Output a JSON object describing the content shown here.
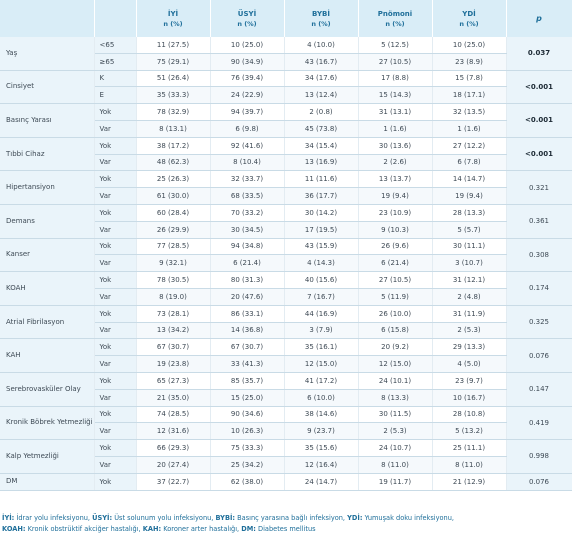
{
  "header": {
    "col0": "",
    "col1": "",
    "groups": [
      {
        "name": "İYİ",
        "sub": "n (%)"
      },
      {
        "name": "ÜSYİ",
        "sub": "n (%)"
      },
      {
        "name": "BYBİ",
        "sub": "n (%)"
      },
      {
        "name": "Pnömoni",
        "sub": "n (%)"
      },
      {
        "name": "YDİ",
        "sub": "n (%)"
      }
    ],
    "p": "p"
  },
  "rows": [
    {
      "variable": "Yaş",
      "p": "0.037",
      "sig": true,
      "levels": [
        {
          "level": "<65",
          "v": [
            "11 (27.5)",
            "10 (25.0)",
            "4 (10.0)",
            "5 (12.5)",
            "10 (25.0)"
          ]
        },
        {
          "level": "≥65",
          "v": [
            "75 (29.1)",
            "90 (34.9)",
            "43 (16.7)",
            "27 (10.5)",
            "23 (8.9)"
          ]
        }
      ]
    },
    {
      "variable": "Cinsiyet",
      "p": "<0.001",
      "sig": true,
      "levels": [
        {
          "level": "K",
          "v": [
            "51 (26.4)",
            "76 (39.4)",
            "34 (17.6)",
            "17 (8.8)",
            "15 (7.8)"
          ]
        },
        {
          "level": "E",
          "v": [
            "35 (33.3)",
            "24 (22.9)",
            "13 (12.4)",
            "15 (14.3)",
            "18 (17.1)"
          ]
        }
      ]
    },
    {
      "variable": "Basınç Yarası",
      "p": "<0.001",
      "sig": true,
      "levels": [
        {
          "level": "Yok",
          "v": [
            "78 (32.9)",
            "94 (39.7)",
            "2 (0.8)",
            "31 (13.1)",
            "32 (13.5)"
          ]
        },
        {
          "level": "Var",
          "v": [
            "8 (13.1)",
            "6 (9.8)",
            "45 (73.8)",
            "1 (1.6)",
            "1 (1.6)"
          ]
        }
      ]
    },
    {
      "variable": "Tıbbi Cihaz",
      "p": "<0.001",
      "sig": true,
      "levels": [
        {
          "level": "Yok",
          "v": [
            "38 (17.2)",
            "92 (41.6)",
            "34 (15.4)",
            "30 (13.6)",
            "27 (12.2)"
          ]
        },
        {
          "level": "Var",
          "v": [
            "48 (62.3)",
            "8 (10.4)",
            "13 (16.9)",
            "2 (2.6)",
            "6 (7.8)"
          ]
        }
      ]
    },
    {
      "variable": "Hipertansiyon",
      "p": "0.321",
      "sig": false,
      "levels": [
        {
          "level": "Yok",
          "v": [
            "25 (26.3)",
            "32 (33.7)",
            "11 (11.6)",
            "13 (13.7)",
            "14 (14.7)"
          ]
        },
        {
          "level": "Var",
          "v": [
            "61 (30.0)",
            "68 (33.5)",
            "36 (17.7)",
            "19 (9.4)",
            "19 (9.4)"
          ]
        }
      ]
    },
    {
      "variable": "Demans",
      "p": "0.361",
      "sig": false,
      "levels": [
        {
          "level": "Yok",
          "v": [
            "60 (28.4)",
            "70 (33.2)",
            "30 (14.2)",
            "23 (10.9)",
            "28 (13.3)"
          ]
        },
        {
          "level": "Var",
          "v": [
            "26 (29.9)",
            "30 (34.5)",
            "17 (19.5)",
            "9 (10.3)",
            "5 (5.7)"
          ]
        }
      ]
    },
    {
      "variable": "Kanser",
      "p": "0.308",
      "sig": false,
      "levels": [
        {
          "level": "Yok",
          "v": [
            "77 (28.5)",
            "94 (34.8)",
            "43 (15.9)",
            "26 (9.6)",
            "30 (11.1)"
          ]
        },
        {
          "level": "Var",
          "v": [
            "9 (32.1)",
            "6 (21.4)",
            "4 (14.3)",
            "6 (21.4)",
            "3 (10.7)"
          ]
        }
      ]
    },
    {
      "variable": "KOAH",
      "p": "0.174",
      "sig": false,
      "levels": [
        {
          "level": "Yok",
          "v": [
            "78 (30.5)",
            "80 (31.3)",
            "40 (15.6)",
            "27 (10.5)",
            "31 (12.1)"
          ]
        },
        {
          "level": "Var",
          "v": [
            "8 (19.0)",
            "20 (47.6)",
            "7 (16.7)",
            "5 (11.9)",
            "2 (4.8)"
          ]
        }
      ]
    },
    {
      "variable": "Atrial Fibrilasyon",
      "p": "0.325",
      "sig": false,
      "levels": [
        {
          "level": "Yok",
          "v": [
            "73 (28.1)",
            "86 (33.1)",
            "44 (16.9)",
            "26 (10.0)",
            "31 (11.9)"
          ]
        },
        {
          "level": "Var",
          "v": [
            "13 (34.2)",
            "14 (36.8)",
            "3 (7.9)",
            "6 (15.8)",
            "2 (5.3)"
          ]
        }
      ]
    },
    {
      "variable": "KAH",
      "p": "0.076",
      "sig": false,
      "levels": [
        {
          "level": "Yok",
          "v": [
            "67 (30.7)",
            "67 (30.7)",
            "35 (16.1)",
            "20 (9.2)",
            "29 (13.3)"
          ]
        },
        {
          "level": "Var",
          "v": [
            "19 (23.8)",
            "33 (41.3)",
            "12 (15.0)",
            "12 (15.0)",
            "4 (5.0)"
          ]
        }
      ]
    },
    {
      "variable": "Serebrovasküler Olay",
      "p": "0.147",
      "sig": false,
      "levels": [
        {
          "level": "Yok",
          "v": [
            "65 (27.3)",
            "85 (35.7)",
            "41 (17.2)",
            "24 (10.1)",
            "23 (9.7)"
          ]
        },
        {
          "level": "Var",
          "v": [
            "21 (35.0)",
            "15 (25.0)",
            "6 (10.0)",
            "8 (13.3)",
            "10 (16.7)"
          ]
        }
      ]
    },
    {
      "variable": "Kronik Böbrek Yetmezliği",
      "p": "0.419",
      "sig": false,
      "levels": [
        {
          "level": "Yok",
          "v": [
            "74 (28.5)",
            "90 (34.6)",
            "38 (14.6)",
            "30 (11.5)",
            "28 (10.8)"
          ]
        },
        {
          "level": "Var",
          "v": [
            "12 (31.6)",
            "10 (26.3)",
            "9 (23.7)",
            "2 (5.3)",
            "5 (13.2)"
          ]
        }
      ]
    },
    {
      "variable": "Kalp Yetmezliği",
      "p": "0.998",
      "sig": false,
      "levels": [
        {
          "level": "Yok",
          "v": [
            "66 (29.3)",
            "75 (33.3)",
            "35 (15.6)",
            "24 (10.7)",
            "25 (11.1)"
          ]
        },
        {
          "level": "Var",
          "v": [
            "20 (27.4)",
            "25 (34.2)",
            "12 (16.4)",
            "8 (11.0)",
            "8 (11.0)"
          ]
        }
      ]
    },
    {
      "variable": "DM",
      "p": "0.076",
      "sig": false,
      "levels": [
        {
          "level": "Yok",
          "v": [
            "37 (22.7)",
            "62 (38.0)",
            "24 (14.7)",
            "19 (11.7)",
            "21 (12.9)"
          ]
        }
      ]
    }
  ],
  "footnote": {
    "line1": [
      {
        "abbr": "İYİ:",
        "text": " İdrar yolu infeksiyonu, "
      },
      {
        "abbr": "ÜSYİ:",
        "text": " Üst solunum yolu infeksiyonu, "
      },
      {
        "abbr": "BYBİ:",
        "text": " Basınç yarasına bağlı infeksiyon, "
      },
      {
        "abbr": "YDİ:",
        "text": " Yumuşak doku infeksiyonu,"
      }
    ],
    "line2": [
      {
        "abbr": "KOAH:",
        "text": " Kronik obstrüktif akciğer hastalığı, "
      },
      {
        "abbr": "KAH:",
        "text": " Koroner arter hastalığı, "
      },
      {
        "abbr": "DM:",
        "text": " Diabetes mellitus"
      }
    ]
  }
}
